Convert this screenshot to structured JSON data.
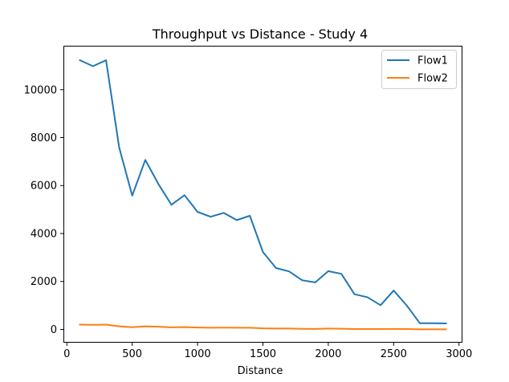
{
  "chart_data": {
    "type": "line",
    "title": "Throughput vs Distance - Study 4",
    "xlabel": "Distance",
    "ylabel": "",
    "xlim": [
      -20,
      3020
    ],
    "ylim": [
      -520,
      11800
    ],
    "xticks": [
      0,
      500,
      1000,
      1500,
      2000,
      2500,
      3000
    ],
    "yticks": [
      0,
      2000,
      4000,
      6000,
      8000,
      10000
    ],
    "grid": false,
    "legend_position": "top-right",
    "x": [
      100,
      200,
      300,
      400,
      500,
      600,
      700,
      800,
      900,
      1000,
      1100,
      1200,
      1300,
      1400,
      1500,
      1600,
      1700,
      1800,
      1900,
      2000,
      2100,
      2200,
      2300,
      2400,
      2500,
      2600,
      2700,
      2800,
      2900
    ],
    "series": [
      {
        "name": "Flow1",
        "color": "#1f77b4",
        "values": [
          11230,
          10980,
          11230,
          7600,
          5580,
          7070,
          6070,
          5200,
          5600,
          4900,
          4700,
          4860,
          4560,
          4740,
          3230,
          2560,
          2420,
          2050,
          1960,
          2430,
          2320,
          1470,
          1340,
          1010,
          1620,
          1000,
          260,
          260,
          250
        ]
      },
      {
        "name": "Flow2",
        "color": "#ff7f0e",
        "values": [
          200,
          190,
          200,
          130,
          90,
          130,
          110,
          85,
          95,
          80,
          70,
          75,
          70,
          70,
          45,
          35,
          35,
          25,
          20,
          35,
          30,
          15,
          15,
          15,
          20,
          15,
          5,
          5,
          5
        ]
      }
    ]
  }
}
